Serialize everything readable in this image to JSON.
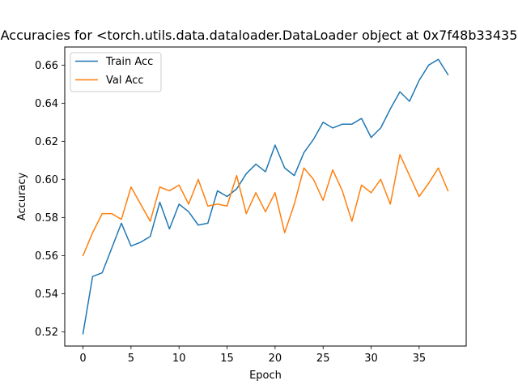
{
  "chart_data": {
    "type": "line",
    "title": "Accuracies for <torch.utils.data.dataloader.DataLoader object at 0x7f48b33435",
    "xlabel": "Epoch",
    "ylabel": "Accuracy",
    "xlim": [
      -1.9,
      39.9
    ],
    "ylim": [
      0.5125,
      0.6695
    ],
    "xticks": [
      0,
      5,
      10,
      15,
      20,
      25,
      30,
      35
    ],
    "yticks": [
      0.52,
      0.54,
      0.56,
      0.58,
      0.6,
      0.62,
      0.64,
      0.66
    ],
    "ytick_labels": [
      "0.52",
      "0.54",
      "0.56",
      "0.58",
      "0.60",
      "0.62",
      "0.64",
      "0.66"
    ],
    "legend_position": "top-left",
    "grid": false,
    "x": [
      0,
      1,
      2,
      3,
      4,
      5,
      6,
      7,
      8,
      9,
      10,
      11,
      12,
      13,
      14,
      15,
      16,
      17,
      18,
      19,
      20,
      21,
      22,
      23,
      24,
      25,
      26,
      27,
      28,
      29,
      30,
      31,
      32,
      33,
      34,
      35,
      36,
      37,
      38
    ],
    "series": [
      {
        "name": "Train Acc",
        "color": "#1f77b4",
        "values": [
          0.519,
          0.549,
          0.551,
          0.564,
          0.577,
          0.565,
          0.567,
          0.57,
          0.588,
          0.574,
          0.587,
          0.583,
          0.576,
          0.577,
          0.594,
          0.591,
          0.595,
          0.603,
          0.608,
          0.604,
          0.618,
          0.606,
          0.602,
          0.614,
          0.621,
          0.63,
          0.627,
          0.629,
          0.629,
          0.632,
          0.622,
          0.627,
          0.637,
          0.646,
          0.641,
          0.652,
          0.66,
          0.663,
          0.655
        ]
      },
      {
        "name": "Val Acc",
        "color": "#ff7f0e",
        "values": [
          0.56,
          0.572,
          0.582,
          0.582,
          0.579,
          0.596,
          0.587,
          0.578,
          0.596,
          0.594,
          0.597,
          0.587,
          0.6,
          0.586,
          0.587,
          0.586,
          0.602,
          0.582,
          0.593,
          0.583,
          0.593,
          0.572,
          0.587,
          0.606,
          0.6,
          0.589,
          0.605,
          0.594,
          0.578,
          0.597,
          0.593,
          0.6,
          0.587,
          0.613,
          0.602,
          0.591,
          0.598,
          0.606,
          0.594
        ]
      }
    ]
  }
}
